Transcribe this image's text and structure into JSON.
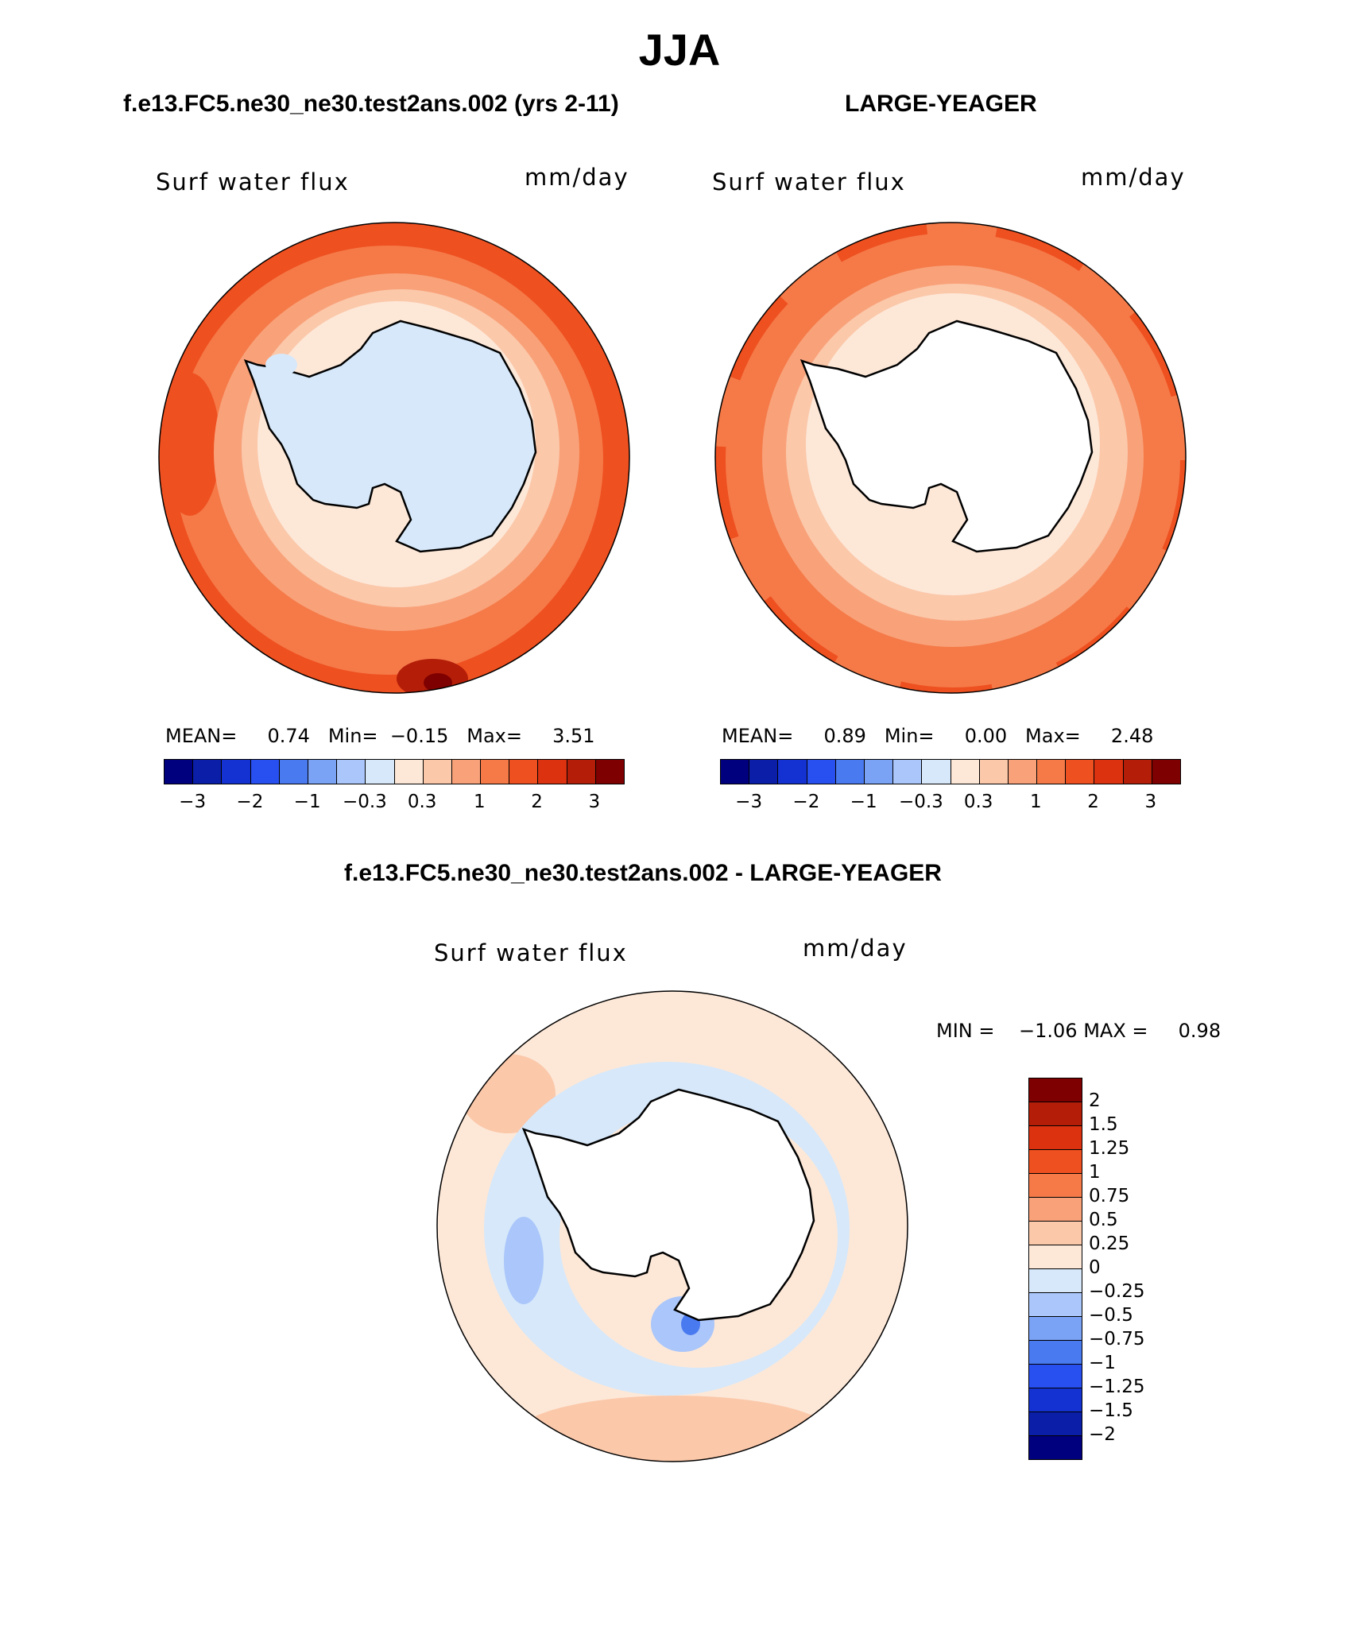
{
  "title": "JJA",
  "panels": [
    {
      "header": "f.e13.FC5.ne30_ne30.test2ans.002 (yrs 2-11)",
      "variable": "Surf water flux",
      "units": "mm/day",
      "stats": {
        "mean_label": "MEAN=",
        "mean": "0.74",
        "min_label": "Min=",
        "min": "−0.15",
        "max_label": "Max=",
        "max": "3.51"
      },
      "land_filled": true
    },
    {
      "header": "LARGE-YEAGER",
      "variable": "Surf water flux",
      "units": "mm/day",
      "stats": {
        "mean_label": "MEAN=",
        "mean": "0.89",
        "min_label": "Min=",
        "min": "0.00",
        "max_label": "Max=",
        "max": "2.48"
      },
      "land_filled": false
    }
  ],
  "top_colorbar": {
    "colors": [
      "#00007f",
      "#0a1ea8",
      "#1432d2",
      "#2850f0",
      "#4a7af0",
      "#7aa2f5",
      "#aac6fa",
      "#d6e8fa",
      "#fde8d8",
      "#fbc8aa",
      "#f9a27a",
      "#f57a48",
      "#ef5020",
      "#dc3210",
      "#b41e08",
      "#7f0000"
    ],
    "ticks": [
      "−3",
      "−2",
      "−1",
      "−0.3",
      "0.3",
      "1",
      "2",
      "3"
    ]
  },
  "diff_panel": {
    "header": "f.e13.FC5.ne30_ne30.test2ans.002 - LARGE-YEAGER",
    "variable": "Surf water flux",
    "units": "mm/day",
    "min_label": "MIN =",
    "min": "−1.06",
    "max_label": "MAX =",
    "max": "0.98",
    "colorbar": {
      "colors": [
        "#7f0000",
        "#b41e08",
        "#dc3210",
        "#ef5020",
        "#f57a48",
        "#f9a27a",
        "#fbc8aa",
        "#fde8d8",
        "#d6e8fa",
        "#aac6fa",
        "#7aa2f5",
        "#4a7af0",
        "#2850f0",
        "#1432d2",
        "#0a1ea8",
        "#00007f"
      ],
      "labels": [
        "2",
        "1.5",
        "1.25",
        "1",
        "0.75",
        "0.5",
        "0.25",
        "0",
        "−0.25",
        "−0.5",
        "−0.75",
        "−1",
        "−1.25",
        "−1.5",
        "−2"
      ]
    }
  }
}
